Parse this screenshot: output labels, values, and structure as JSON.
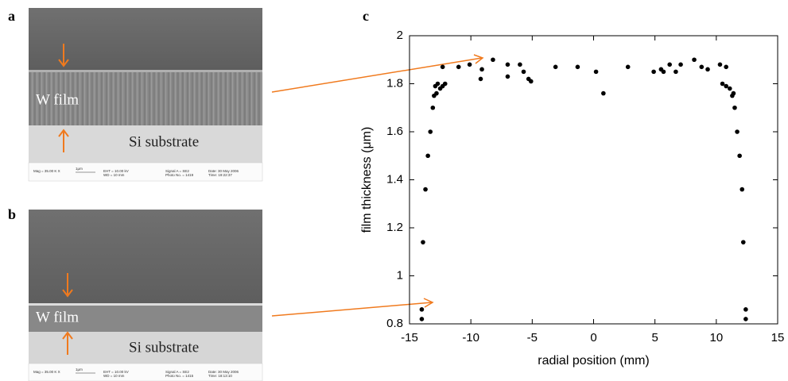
{
  "figure": {
    "panel_labels": [
      "a",
      "b",
      "c"
    ],
    "images": [
      {
        "labels": [
          "W film",
          "Si substrate"
        ],
        "info": [
          "Mag = 35.00 K X",
          "1μm",
          "EHT = 10.00 kV",
          "WD = 10 mm",
          "Signal A = SE2",
          "Photo No. = 1419",
          "Date: 30 May 2006",
          "Time: 19:22:37"
        ]
      },
      {
        "labels": [
          "W film",
          "Si substrate"
        ],
        "info": [
          "Mag = 35.00 K X",
          "1μm",
          "EHT = 10.00 kV",
          "WD = 10 mm",
          "Signal A = SE2",
          "Photo No. = 1415",
          "Date: 30 May 2006",
          "Time: 18:13:10"
        ]
      }
    ]
  },
  "chart_data": {
    "type": "scatter",
    "x_label": "radial position (mm)",
    "y_label": "film thickness (μm)",
    "x": [
      -14.0,
      -14.0,
      -13.9,
      -13.7,
      -13.5,
      -13.3,
      -13.1,
      -13.0,
      -12.9,
      -12.8,
      -12.7,
      -12.5,
      -12.3,
      -12.1,
      -12.3,
      -11.0,
      -10.1,
      -9.2,
      -9.1,
      -8.2,
      -7.0,
      -7.0,
      -6.0,
      -5.7,
      -5.3,
      -5.1,
      -3.1,
      -1.3,
      0.2,
      0.8,
      2.8,
      4.9,
      5.5,
      5.7,
      6.2,
      6.7,
      7.1,
      8.2,
      8.8,
      9.3,
      10.3,
      10.8,
      10.5,
      10.8,
      11.1,
      11.3,
      11.4,
      11.5,
      11.7,
      11.9,
      12.1,
      12.2,
      12.4,
      12.4
    ],
    "values": [
      0.82,
      0.86,
      1.14,
      1.36,
      1.5,
      1.6,
      1.7,
      1.75,
      1.79,
      1.76,
      1.8,
      1.78,
      1.79,
      1.8,
      1.87,
      1.87,
      1.88,
      1.82,
      1.86,
      1.9,
      1.88,
      1.83,
      1.88,
      1.85,
      1.82,
      1.81,
      1.87,
      1.87,
      1.85,
      1.76,
      1.87,
      1.85,
      1.86,
      1.85,
      1.88,
      1.85,
      1.88,
      1.9,
      1.87,
      1.86,
      1.88,
      1.87,
      1.8,
      1.79,
      1.78,
      1.75,
      1.76,
      1.7,
      1.6,
      1.5,
      1.36,
      1.14,
      0.86,
      0.82
    ],
    "color": "#000000",
    "xlim": [
      -15,
      15
    ],
    "xticks": [
      -15,
      -10,
      -5,
      0,
      5,
      10,
      15
    ],
    "ylim": [
      0.8,
      2
    ],
    "yticks": [
      0.8,
      1,
      1.2,
      1.4,
      1.6,
      1.8,
      2
    ],
    "grid": false
  }
}
